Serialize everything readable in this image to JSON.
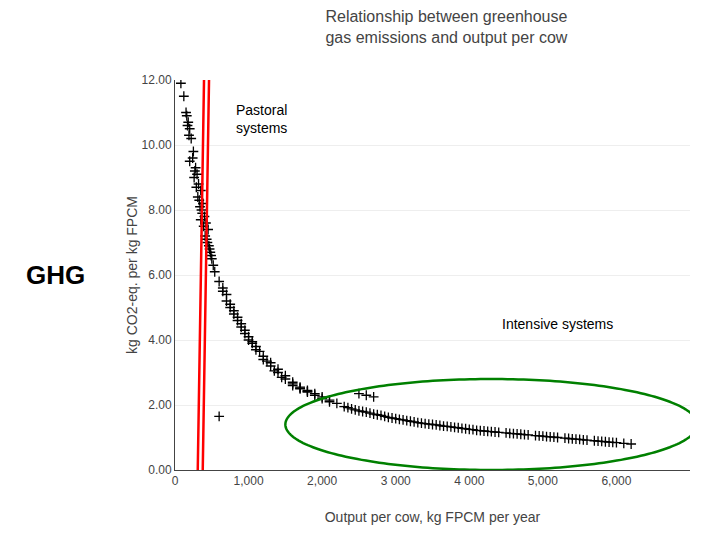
{
  "chart_data": {
    "type": "scatter",
    "title": "Relationship between greenhouse\ngas emissions and output per cow",
    "xlabel": "Output per cow, kg FPCM per year",
    "ylabel": "kg CO2-eq. per kg FPCM",
    "x": [
      80,
      120,
      150,
      180,
      200,
      160,
      220,
      250,
      200,
      280,
      300,
      260,
      320,
      350,
      310,
      380,
      360,
      400,
      330,
      370,
      420,
      450,
      410,
      460,
      480,
      500,
      440,
      390,
      340,
      290,
      270,
      240,
      190,
      170,
      520,
      490,
      540,
      470,
      430,
      350,
      600,
      650,
      700,
      750,
      800,
      850,
      900,
      950,
      1000,
      1050,
      1100,
      1200,
      1300,
      1400,
      1500,
      1600,
      1700,
      1800,
      1900,
      2000,
      700,
      800,
      900,
      1000,
      1100,
      1200,
      1300,
      1400,
      1500,
      1600,
      1700,
      1800,
      1900,
      2100,
      2200,
      650,
      750,
      850,
      950,
      1050,
      1150,
      1250,
      1350,
      1450,
      600,
      2000,
      2100,
      1600,
      1700,
      1800,
      2300,
      2400,
      2500,
      2600,
      2700,
      2800,
      2900,
      3000,
      3100,
      3200,
      3300,
      3400,
      3500,
      3600,
      3700,
      3800,
      3900,
      4000,
      4100,
      4200,
      4300,
      4400,
      4500,
      4600,
      4700,
      4800,
      4900,
      5000,
      5100,
      5200,
      5300,
      5400,
      5500,
      5600,
      5700,
      5800,
      5900,
      6000,
      6100,
      6200,
      2350,
      2550,
      2750,
      2950,
      3150,
      3350,
      3550,
      3750,
      3950,
      4150,
      4350,
      4550,
      4750,
      4950,
      5150,
      5350,
      5550,
      5750,
      5950,
      2450,
      2650,
      2850,
      3050,
      3250,
      3450,
      3650,
      3850,
      4050,
      4250,
      4650,
      5050,
      5450,
      5850,
      2500,
      2600,
      2700
    ],
    "values": [
      11.9,
      11.5,
      11.0,
      10.7,
      10.5,
      10.9,
      10.2,
      9.8,
      9.5,
      9.3,
      9.1,
      9.0,
      8.8,
      8.6,
      8.4,
      8.2,
      8.0,
      7.8,
      8.3,
      7.9,
      7.6,
      7.4,
      7.2,
      6.9,
      6.7,
      6.5,
      7.0,
      7.5,
      8.1,
      8.7,
      9.2,
      9.6,
      10.3,
      10.6,
      6.3,
      6.6,
      6.1,
      6.8,
      7.1,
      7.7,
      5.8,
      5.5,
      5.2,
      5.0,
      4.8,
      4.6,
      4.4,
      4.2,
      4.0,
      3.9,
      3.7,
      3.5,
      3.3,
      3.1,
      2.9,
      2.7,
      2.55,
      2.45,
      2.35,
      2.2,
      5.4,
      4.9,
      4.5,
      4.1,
      3.8,
      3.4,
      3.2,
      3.0,
      2.8,
      2.6,
      2.5,
      2.4,
      2.3,
      2.1,
      2.05,
      5.6,
      5.1,
      4.7,
      4.3,
      3.95,
      3.65,
      3.35,
      3.05,
      2.85,
      1.65,
      2.25,
      2.15,
      2.65,
      2.52,
      2.42,
      1.95,
      1.88,
      1.82,
      1.78,
      1.72,
      1.68,
      1.62,
      1.58,
      1.54,
      1.5,
      1.46,
      1.43,
      1.4,
      1.37,
      1.34,
      1.31,
      1.28,
      1.25,
      1.22,
      1.2,
      1.18,
      1.16,
      1.14,
      1.12,
      1.1,
      1.08,
      1.06,
      1.04,
      1.02,
      1.0,
      0.98,
      0.96,
      0.94,
      0.92,
      0.9,
      0.88,
      0.86,
      0.84,
      0.82,
      0.8,
      1.92,
      1.8,
      1.7,
      1.6,
      1.52,
      1.44,
      1.39,
      1.33,
      1.27,
      1.21,
      1.17,
      1.13,
      1.09,
      1.05,
      1.01,
      0.97,
      0.93,
      0.89,
      0.85,
      1.85,
      1.75,
      1.65,
      1.56,
      1.48,
      1.41,
      1.35,
      1.3,
      1.24,
      1.19,
      1.11,
      1.03,
      0.95,
      0.87,
      2.35,
      2.3,
      2.25
    ],
    "color": "#000000",
    "marker": "plus",
    "xlim": [
      0,
      7000
    ],
    "ylim": [
      0,
      12
    ],
    "xticks": [
      0,
      {
        "value": 1000,
        "label": "1,000"
      },
      {
        "value": 2000,
        "label": "2,000"
      },
      {
        "value": 3000,
        "label": "3 000"
      },
      {
        "value": 4000,
        "label": "4 000"
      },
      {
        "value": 5000,
        "label": "5,000"
      },
      {
        "value": 6000,
        "label": "6,000"
      }
    ],
    "yticks": [
      {
        "value": 0,
        "label": "0.00"
      },
      {
        "value": 2,
        "label": "2.00"
      },
      {
        "value": 4,
        "label": "4.00"
      },
      {
        "value": 6,
        "label": "6.00"
      },
      {
        "value": 8,
        "label": "8.00"
      },
      {
        "value": 10,
        "label": "10.00"
      },
      {
        "value": 12,
        "label": "12.00"
      }
    ],
    "grid": "y",
    "ellipses": [
      {
        "x": 400,
        "y": 8.0,
        "width": 1200,
        "height": 9.5,
        "angle": 8,
        "color": "red"
      },
      {
        "x": 4300,
        "y": 1.4,
        "width": 5600,
        "height": 2.8,
        "angle": 0,
        "color": "green"
      }
    ],
    "annotations": [
      {
        "text": "Pastoral\nsystems",
        "x": 800,
        "y": 10.8,
        "align": "left"
      },
      {
        "text": "Intensive systems",
        "x": 5200,
        "y": 4.5,
        "align": "center"
      },
      {
        "text": "GHG"
      }
    ]
  }
}
